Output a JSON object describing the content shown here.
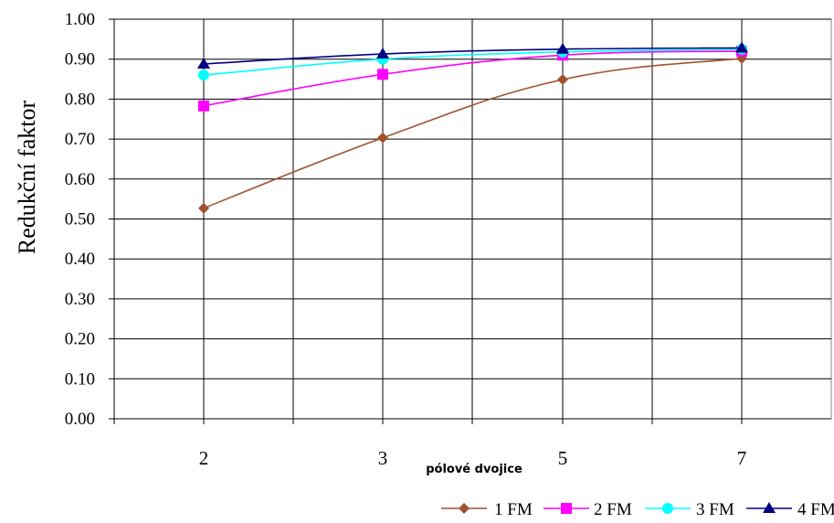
{
  "chart_data": {
    "type": "line",
    "x": [
      "2",
      "3",
      "5",
      "7"
    ],
    "ylabel": "Redukční faktor",
    "xlabel": "pólové dvojice",
    "ylim": [
      0,
      1
    ],
    "yticks": [
      "0.00",
      "0.10",
      "0.20",
      "0.30",
      "0.40",
      "0.50",
      "0.60",
      "0.70",
      "0.80",
      "0.90",
      "1.00"
    ],
    "grid": true,
    "legend_position": "bottom-right",
    "series": [
      {
        "name": "1 FM",
        "values": [
          0.527,
          0.703,
          0.849,
          0.902
        ],
        "color": "#a0522d",
        "marker": "diamond"
      },
      {
        "name": "2 FM",
        "values": [
          0.783,
          0.862,
          0.91,
          0.92
        ],
        "color": "#ff00ff",
        "marker": "square"
      },
      {
        "name": "3 FM",
        "values": [
          0.86,
          0.9,
          0.918,
          0.925
        ],
        "color": "#00ffff",
        "marker": "circle"
      },
      {
        "name": "4 FM",
        "values": [
          0.888,
          0.913,
          0.925,
          0.928
        ],
        "color": "#000080",
        "marker": "triangle"
      }
    ]
  }
}
